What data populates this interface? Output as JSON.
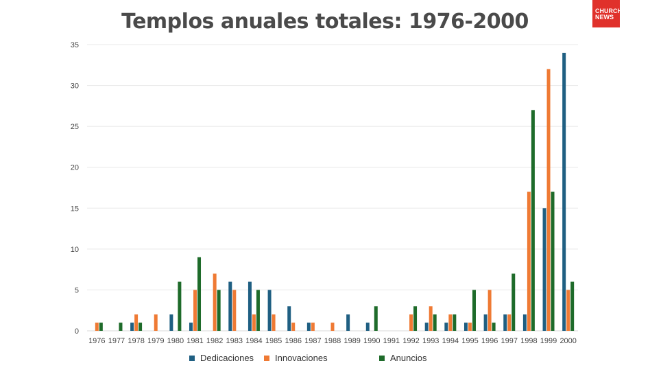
{
  "chart_data": {
    "type": "bar",
    "title": "Templos anuales totales: 1976-2000",
    "xlabel": "",
    "ylabel": "",
    "ylim": [
      0,
      35
    ],
    "yticks": [
      0,
      5,
      10,
      15,
      20,
      25,
      30,
      35
    ],
    "grid": true,
    "legend_position": "bottom",
    "categories": [
      "1976",
      "1977",
      "1978",
      "1979",
      "1980",
      "1981",
      "1982",
      "1983",
      "1984",
      "1985",
      "1986",
      "1987",
      "1988",
      "1989",
      "1990",
      "1991",
      "1992",
      "1993",
      "1994",
      "1995",
      "1996",
      "1997",
      "1998",
      "1999",
      "2000"
    ],
    "series": [
      {
        "name": "Dedicaciones",
        "color": "#1f5f82",
        "values": [
          0,
          0,
          1,
          0,
          2,
          1,
          0,
          6,
          6,
          5,
          3,
          1,
          0,
          2,
          1,
          0,
          0,
          1,
          1,
          1,
          2,
          2,
          2,
          15,
          34
        ]
      },
      {
        "name": "Innovaciones",
        "color": "#ef7a34",
        "values": [
          1,
          0,
          2,
          2,
          0,
          5,
          7,
          5,
          2,
          2,
          1,
          1,
          1,
          0,
          0,
          0,
          2,
          3,
          2,
          1,
          5,
          2,
          17,
          32,
          5
        ]
      },
      {
        "name": "Anuncios",
        "color": "#1e6b2a",
        "values": [
          1,
          1,
          1,
          0,
          6,
          9,
          5,
          0,
          5,
          0,
          0,
          0,
          0,
          0,
          3,
          0,
          3,
          2,
          2,
          5,
          1,
          7,
          27,
          17,
          6
        ]
      }
    ]
  },
  "logo": {
    "text": "CHURCH NEWS"
  }
}
